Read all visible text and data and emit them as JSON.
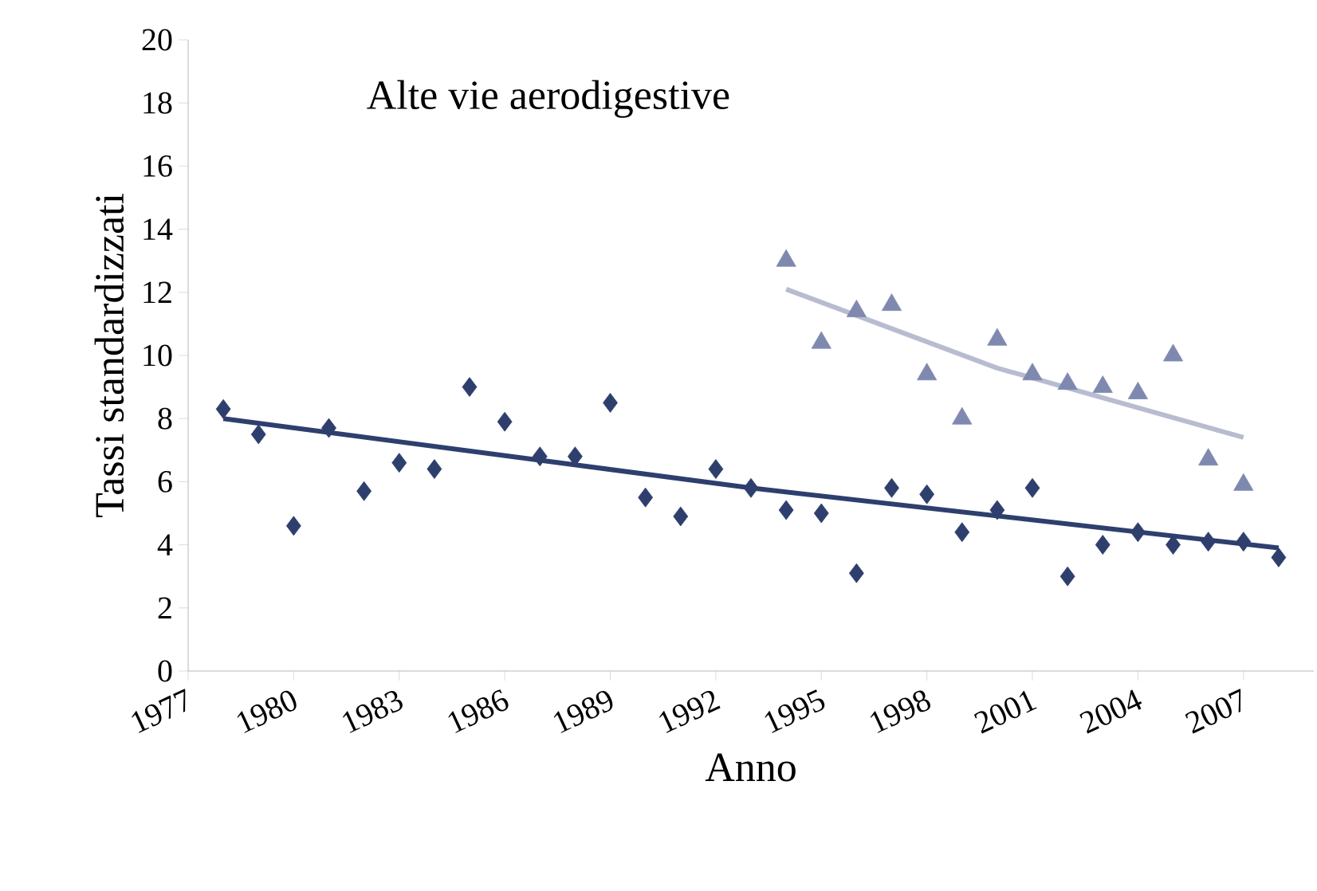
{
  "chart_data": {
    "type": "scatter",
    "title": "Alte vie aerodigestive",
    "xlabel": "Anno",
    "ylabel": "Tassi standardizzati",
    "xlim": [
      1977,
      2009
    ],
    "xticks": [
      1977,
      1980,
      1983,
      1986,
      1989,
      1992,
      1995,
      1998,
      2001,
      2004,
      2007
    ],
    "ylim": [
      0,
      20
    ],
    "yticks": [
      0,
      2,
      4,
      6,
      8,
      10,
      12,
      14,
      16,
      18,
      20
    ],
    "grid": false,
    "series": [
      {
        "type": "scatter",
        "marker": "diamond",
        "color": "#2e3f6e",
        "x": [
          1978,
          1979,
          1980,
          1981,
          1982,
          1983,
          1984,
          1985,
          1986,
          1987,
          1988,
          1989,
          1990,
          1991,
          1992,
          1993,
          1994,
          1995,
          1996,
          1997,
          1998,
          1999,
          2000,
          2001,
          2002,
          2003,
          2004,
          2005,
          2006,
          2007,
          2008
        ],
        "values": [
          8.3,
          7.5,
          4.6,
          7.7,
          5.7,
          6.6,
          6.4,
          9.0,
          7.9,
          6.8,
          6.8,
          8.5,
          5.5,
          4.9,
          6.4,
          5.8,
          5.1,
          5.0,
          3.1,
          5.8,
          5.6,
          4.4,
          5.1,
          5.8,
          3.0,
          4.0,
          4.4,
          4.0,
          4.1,
          4.1,
          3.6
        ]
      },
      {
        "type": "scatter",
        "marker": "triangle",
        "color": "#7f89b0",
        "x": [
          1994,
          1995,
          1996,
          1997,
          1998,
          1999,
          2000,
          2001,
          2002,
          2003,
          2004,
          2005,
          2006,
          2007
        ],
        "values": [
          13.0,
          10.4,
          11.4,
          11.6,
          9.4,
          8.0,
          10.5,
          9.4,
          9.1,
          9.0,
          8.8,
          10.0,
          6.7,
          5.9
        ]
      },
      {
        "type": "line",
        "marker": "none",
        "color": "#2e3f6e",
        "x": [
          1978,
          1993,
          2008
        ],
        "values": [
          8.0,
          5.8,
          3.9
        ]
      },
      {
        "type": "line",
        "marker": "none",
        "color": "#b8bcd0",
        "x": [
          1994,
          2000,
          2007
        ],
        "values": [
          12.1,
          9.6,
          7.4
        ]
      }
    ]
  }
}
